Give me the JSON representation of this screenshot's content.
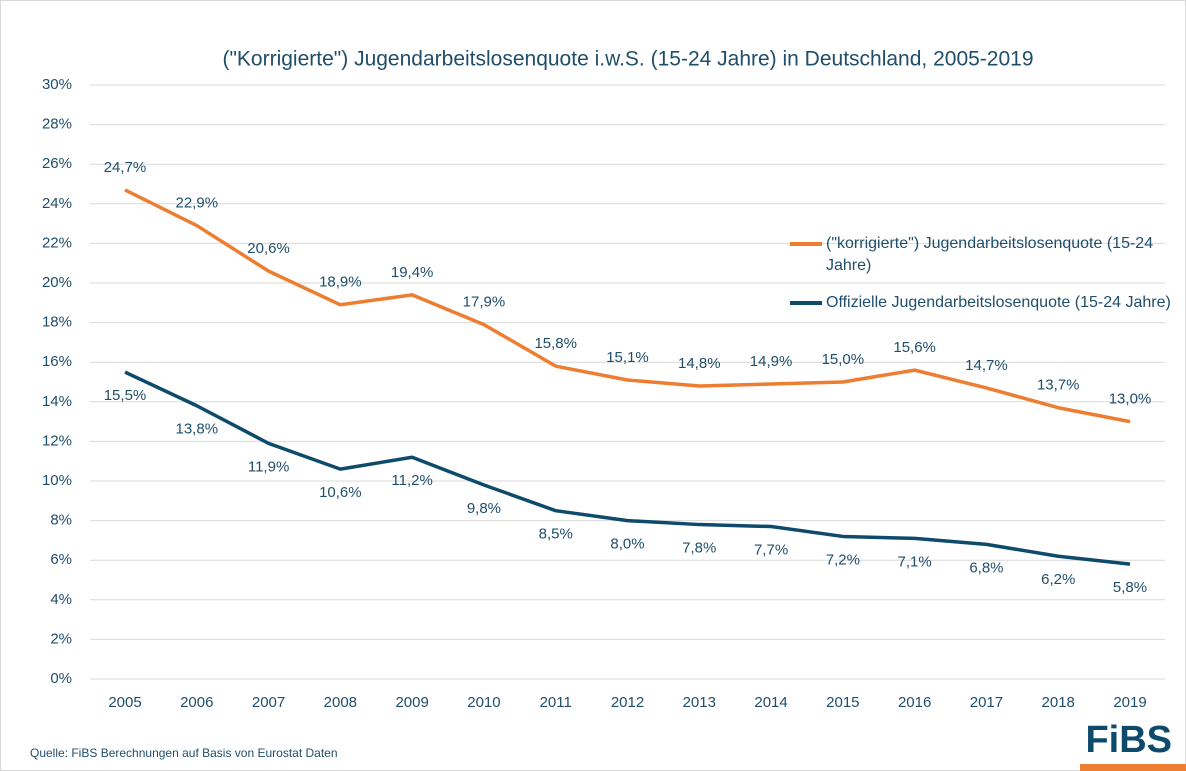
{
  "chart_data": {
    "type": "line",
    "title": "(\"Korrigierte\") Jugendarbeitslosenquote i.w.S. (15-24 Jahre) in Deutschland, 2005-2019",
    "categories": [
      "2005",
      "2006",
      "2007",
      "2008",
      "2009",
      "2010",
      "2011",
      "2012",
      "2013",
      "2014",
      "2015",
      "2016",
      "2017",
      "2018",
      "2019"
    ],
    "series": [
      {
        "name": "(\"korrigierte\") Jugendarbeitslosenquote (15-24 Jahre)",
        "color": "#ed7d31",
        "values": [
          24.7,
          22.9,
          20.6,
          18.9,
          19.4,
          17.9,
          15.8,
          15.1,
          14.8,
          14.9,
          15.0,
          15.6,
          14.7,
          13.7,
          13.0
        ],
        "value_labels": [
          "24,7%",
          "22,9%",
          "20,6%",
          "18,9%",
          "19,4%",
          "17,9%",
          "15,8%",
          "15,1%",
          "14,8%",
          "14,9%",
          "15,0%",
          "15,6%",
          "14,7%",
          "13,7%",
          "13,0%"
        ]
      },
      {
        "name": "Offizielle Jugendarbeitslosenquote (15-24 Jahre)",
        "color": "#0d4a6b",
        "values": [
          15.5,
          13.8,
          11.9,
          10.6,
          11.2,
          9.8,
          8.5,
          8.0,
          7.8,
          7.7,
          7.2,
          7.1,
          6.8,
          6.2,
          5.8
        ],
        "value_labels": [
          "15,5%",
          "13,8%",
          "11,9%",
          "10,6%",
          "11,2%",
          "9,8%",
          "8,5%",
          "8,0%",
          "7,8%",
          "7,7%",
          "7,2%",
          "7,1%",
          "6,8%",
          "6,2%",
          "5,8%"
        ]
      }
    ],
    "ylim": [
      0,
      30
    ],
    "yticks": [
      {
        "value": 0,
        "label": "0%"
      },
      {
        "value": 2,
        "label": "2%"
      },
      {
        "value": 4,
        "label": "4%"
      },
      {
        "value": 6,
        "label": "6%"
      },
      {
        "value": 8,
        "label": "8%"
      },
      {
        "value": 10,
        "label": "10%"
      },
      {
        "value": 12,
        "label": "12%"
      },
      {
        "value": 14,
        "label": "14%"
      },
      {
        "value": 16,
        "label": "16%"
      },
      {
        "value": 18,
        "label": "18%"
      },
      {
        "value": 20,
        "label": "20%"
      },
      {
        "value": 22,
        "label": "22%"
      },
      {
        "value": 24,
        "label": "24%"
      },
      {
        "value": 26,
        "label": "26%"
      },
      {
        "value": 28,
        "label": "28%"
      },
      {
        "value": 30,
        "label": "30%"
      }
    ],
    "grid": true,
    "legend": "right",
    "source": "Quelle: FiBS Berechnungen auf Basis von Eurostat Daten",
    "logo": "FiBS"
  }
}
